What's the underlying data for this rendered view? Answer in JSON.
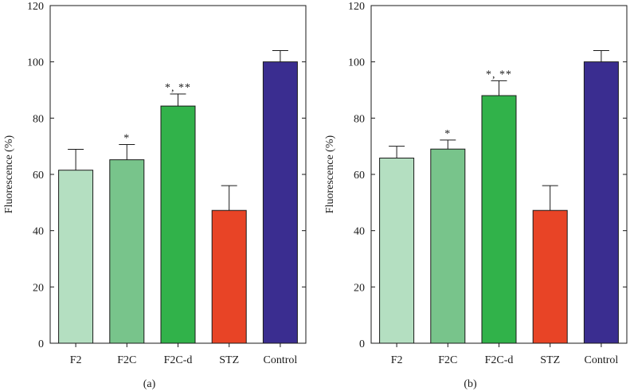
{
  "chart_data": [
    {
      "type": "bar",
      "panel_label": "(a)",
      "ylabel": "Fluorescence (%)",
      "xlabel": "",
      "ylim": [
        0,
        120
      ],
      "yticks": [
        "0",
        "20",
        "40",
        "60",
        "80",
        "100",
        "120"
      ],
      "ytick_values": [
        0,
        20,
        40,
        60,
        80,
        100,
        120
      ],
      "categories": [
        "F2",
        "F2C",
        "F2C-d",
        "STZ",
        "Control"
      ],
      "values": [
        61.5,
        65.2,
        84.3,
        47.2,
        100
      ],
      "errors": [
        7.4,
        5.4,
        4.3,
        8.8,
        4.0
      ],
      "annotations": [
        "",
        "*",
        "*, **",
        "",
        ""
      ],
      "colors": [
        "#b4dfc1",
        "#78c48b",
        "#31b24a",
        "#e84426",
        "#3a2d90"
      ]
    },
    {
      "type": "bar",
      "panel_label": "(b)",
      "ylabel": "Fluorescence (%)",
      "xlabel": "",
      "ylim": [
        0,
        120
      ],
      "yticks": [
        "0",
        "20",
        "40",
        "60",
        "80",
        "100",
        "120"
      ],
      "ytick_values": [
        0,
        20,
        40,
        60,
        80,
        100,
        120
      ],
      "categories": [
        "F2",
        "F2C",
        "F2C-d",
        "STZ",
        "Control"
      ],
      "values": [
        65.8,
        69.0,
        88.0,
        47.2,
        100
      ],
      "errors": [
        4.2,
        3.2,
        5.3,
        8.8,
        4.0
      ],
      "annotations": [
        "",
        "*",
        "*, **",
        "",
        ""
      ],
      "colors": [
        "#b4dfc1",
        "#78c48b",
        "#31b24a",
        "#e84426",
        "#3a2d90"
      ]
    }
  ]
}
